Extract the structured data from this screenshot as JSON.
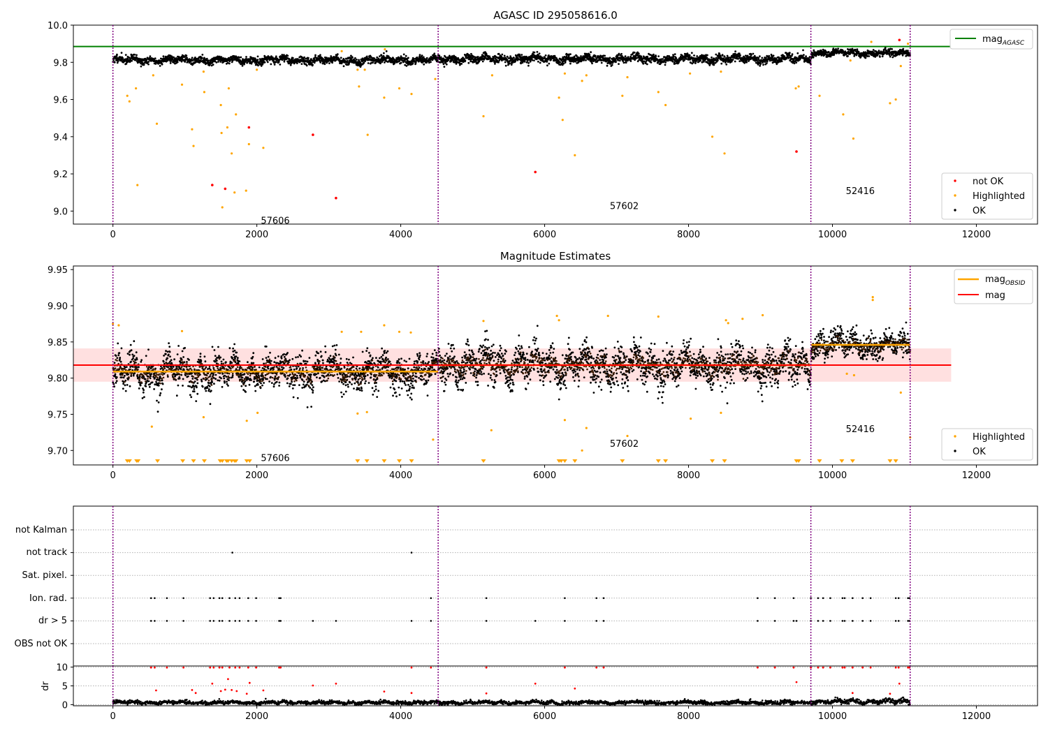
{
  "chart_data": [
    {
      "type": "scatter",
      "title": "AGASC ID 295058616.0",
      "xlim": [
        -550,
        12850
      ],
      "ylim": [
        8.93,
        10.0
      ],
      "xticks": [
        0,
        2000,
        4000,
        6000,
        8000,
        10000,
        12000
      ],
      "yticks": [
        "9.0",
        "9.2",
        "9.4",
        "9.6",
        "9.8",
        "10.0"
      ],
      "grid": false,
      "obsid_boundaries": [
        0,
        4520,
        9700,
        11080
      ],
      "obsid_labels": [
        {
          "text": "57606",
          "x": 2250,
          "y": 8.95
        },
        {
          "text": "57602",
          "x": 7100,
          "y": 9.03
        },
        {
          "text": "52416",
          "x": 10380,
          "y": 9.11
        }
      ],
      "segments": [
        {
          "x_start": 0,
          "x_end": 4520,
          "mean": 9.812,
          "amplitude": 0.022
        },
        {
          "x_start": 4520,
          "x_end": 9700,
          "mean": 9.818,
          "amplitude": 0.024
        },
        {
          "x_start": 9700,
          "x_end": 11080,
          "mean": 9.85,
          "amplitude": 0.018
        }
      ],
      "lines": [
        {
          "name": "mag$_{AGASC}$",
          "label_main": "mag",
          "label_sub": "AGASC",
          "y": 9.885,
          "x_start": -550,
          "x_end": 11650,
          "color": "#008000"
        }
      ],
      "not_ok": [
        [
          1380,
          9.14
        ],
        [
          1560,
          9.12
        ],
        [
          1890,
          9.45
        ],
        [
          2780,
          9.41
        ],
        [
          3100,
          9.07
        ],
        [
          5870,
          9.21
        ],
        [
          9500,
          9.32
        ],
        [
          10930,
          9.92
        ]
      ],
      "highlighted": [
        [
          200,
          9.62
        ],
        [
          230,
          9.59
        ],
        [
          320,
          9.66
        ],
        [
          340,
          9.14
        ],
        [
          560,
          9.73
        ],
        [
          610,
          9.47
        ],
        [
          960,
          9.68
        ],
        [
          1100,
          9.44
        ],
        [
          1120,
          9.35
        ],
        [
          1260,
          9.75
        ],
        [
          1270,
          9.64
        ],
        [
          1500,
          9.57
        ],
        [
          1510,
          9.42
        ],
        [
          1520,
          9.02
        ],
        [
          1590,
          9.45
        ],
        [
          1610,
          9.66
        ],
        [
          1650,
          9.31
        ],
        [
          1690,
          9.1
        ],
        [
          1710,
          9.52
        ],
        [
          1850,
          9.11
        ],
        [
          1890,
          9.36
        ],
        [
          2000,
          9.76
        ],
        [
          2090,
          9.34
        ],
        [
          3180,
          9.86
        ],
        [
          3400,
          9.76
        ],
        [
          3420,
          9.67
        ],
        [
          3500,
          9.76
        ],
        [
          3540,
          9.41
        ],
        [
          3770,
          9.61
        ],
        [
          3780,
          9.87
        ],
        [
          3980,
          9.66
        ],
        [
          4150,
          9.63
        ],
        [
          4480,
          9.71
        ],
        [
          5150,
          9.51
        ],
        [
          5270,
          9.73
        ],
        [
          6200,
          9.61
        ],
        [
          6250,
          9.49
        ],
        [
          6280,
          9.74
        ],
        [
          6420,
          9.3
        ],
        [
          6520,
          9.7
        ],
        [
          6580,
          9.73
        ],
        [
          7080,
          9.62
        ],
        [
          7150,
          9.72
        ],
        [
          7580,
          9.64
        ],
        [
          7680,
          9.57
        ],
        [
          8020,
          9.74
        ],
        [
          8330,
          9.4
        ],
        [
          8450,
          9.75
        ],
        [
          8500,
          9.31
        ],
        [
          9490,
          9.66
        ],
        [
          9530,
          9.67
        ],
        [
          9820,
          9.62
        ],
        [
          10150,
          9.52
        ],
        [
          10250,
          9.81
        ],
        [
          10290,
          9.39
        ],
        [
          10540,
          9.91
        ],
        [
          10800,
          9.58
        ],
        [
          10880,
          9.6
        ],
        [
          10950,
          9.78
        ],
        [
          11050,
          9.9
        ]
      ],
      "legend": {
        "position": "lower-right",
        "entries": [
          "not OK",
          "Highlighted",
          "OK"
        ]
      },
      "legend_top": {
        "position": "upper-right"
      }
    },
    {
      "type": "scatter",
      "title": "Magnitude Estimates",
      "xlim": [
        -550,
        12850
      ],
      "ylim": [
        9.68,
        9.955
      ],
      "xticks": [
        0,
        2000,
        4000,
        6000,
        8000,
        10000,
        12000
      ],
      "yticks": [
        "9.70",
        "9.75",
        "9.80",
        "9.85",
        "9.90",
        "9.95"
      ],
      "grid": false,
      "obsid_boundaries": [
        0,
        4520,
        9700,
        11080
      ],
      "obsid_labels": [
        {
          "text": "57606",
          "x": 2250,
          "y": 9.69
        },
        {
          "text": "57602",
          "x": 7100,
          "y": 9.71
        },
        {
          "text": "52416",
          "x": 10380,
          "y": 9.73
        }
      ],
      "segments": [
        {
          "x_start": 0,
          "x_end": 4520,
          "mean": 9.809,
          "amplitude": 0.026
        },
        {
          "x_start": 4520,
          "x_end": 9700,
          "mean": 9.818,
          "amplitude": 0.028
        },
        {
          "x_start": 9700,
          "x_end": 11080,
          "mean": 9.846,
          "amplitude": 0.02
        }
      ],
      "mag_band": {
        "low": 9.795,
        "high": 9.841,
        "x_start": -550,
        "x_end": 11650,
        "color": "#ff0000"
      },
      "lines": [
        {
          "name": "mag",
          "label_main": "mag",
          "label_sub": "",
          "y": 9.818,
          "x_start": -550,
          "x_end": 11650,
          "color": "#ff0000"
        }
      ],
      "obsid_mags": {
        "label_main": "mag",
        "label_sub": "OBSID",
        "color": "#ffa500",
        "segments": [
          {
            "x_start": 0,
            "x_end": 4520,
            "y": 9.809
          },
          {
            "x_start": 4520,
            "x_end": 9700,
            "y": 9.818
          },
          {
            "x_start": 9700,
            "x_end": 11080,
            "y": 9.846
          }
        ]
      },
      "highlighted": [
        [
          0,
          9.875
        ],
        [
          80,
          9.873
        ],
        [
          540,
          9.733
        ],
        [
          960,
          9.865
        ],
        [
          1260,
          9.746
        ],
        [
          1860,
          9.741
        ],
        [
          2010,
          9.752
        ],
        [
          3180,
          9.864
        ],
        [
          3400,
          9.751
        ],
        [
          3450,
          9.864
        ],
        [
          3530,
          9.753
        ],
        [
          3770,
          9.873
        ],
        [
          3980,
          9.864
        ],
        [
          4140,
          9.863
        ],
        [
          4450,
          9.715
        ],
        [
          5150,
          9.879
        ],
        [
          5260,
          9.728
        ],
        [
          6170,
          9.886
        ],
        [
          6200,
          9.88
        ],
        [
          6280,
          9.742
        ],
        [
          6520,
          9.7
        ],
        [
          6580,
          9.731
        ],
        [
          6880,
          9.886
        ],
        [
          7150,
          9.72
        ],
        [
          7580,
          9.885
        ],
        [
          8030,
          9.744
        ],
        [
          8450,
          9.752
        ],
        [
          8520,
          9.88
        ],
        [
          8550,
          9.876
        ],
        [
          8750,
          9.882
        ],
        [
          9030,
          9.887
        ],
        [
          10200,
          9.806
        ],
        [
          10300,
          9.804
        ],
        [
          10560,
          9.908
        ],
        [
          10560,
          9.912
        ],
        [
          10950,
          9.78
        ],
        [
          11080,
          9.896
        ],
        [
          11080,
          9.718
        ]
      ],
      "clipped_markers_x": [
        200,
        230,
        330,
        350,
        620,
        970,
        1120,
        1270,
        1490,
        1520,
        1580,
        1600,
        1650,
        1690,
        1710,
        1860,
        1900,
        3400,
        3530,
        3770,
        3980,
        4150,
        5150,
        6200,
        6230,
        6280,
        6420,
        7080,
        7580,
        7680,
        8330,
        8500,
        9500,
        9530,
        9820,
        10130,
        10280,
        10800,
        10880
      ],
      "legend": {
        "position": "lower-right",
        "entries": [
          "Highlighted",
          "OK"
        ]
      },
      "legend_top": {
        "position": "upper-right"
      }
    },
    {
      "type": "scatter",
      "title": "",
      "xlim": [
        -550,
        12850
      ],
      "yticks": [
        "not Kalman",
        "not track",
        "Sat. pixel.",
        "Ion. rad.",
        "dr > 5",
        "OBS not OK"
      ],
      "grid": true,
      "obsid_boundaries": [
        0,
        4520,
        9700,
        11080
      ],
      "flags": {
        "not track": [
          1660,
          4150
        ],
        "Ion. rad.": [
          530,
          580,
          750,
          980,
          1350,
          1400,
          1480,
          1520,
          1620,
          1700,
          1760,
          1880,
          1990,
          2310,
          2330,
          4420,
          5190,
          6280,
          6720,
          6820,
          8960,
          9200,
          9460,
          9700,
          9800,
          9870,
          9970,
          10140,
          10170,
          10280,
          10420,
          10530,
          10880,
          10920,
          11050,
          11070
        ],
        "dr > 5": [
          530,
          580,
          750,
          980,
          1350,
          1400,
          1480,
          1520,
          1620,
          1700,
          1760,
          1880,
          1990,
          2310,
          2330,
          2780,
          3100,
          4150,
          4420,
          5190,
          5870,
          6280,
          6720,
          6820,
          8960,
          9200,
          9460,
          9500,
          9700,
          9800,
          9870,
          9970,
          10140,
          10170,
          10280,
          10420,
          10530,
          10880,
          10920,
          11050,
          11070
        ]
      }
    },
    {
      "type": "scatter",
      "title": "",
      "ylabel": "dr",
      "xlim": [
        -550,
        12850
      ],
      "ylim": [
        -0.3,
        10.3
      ],
      "xticks": [
        0,
        2000,
        4000,
        6000,
        8000,
        10000,
        12000
      ],
      "yticks": [
        "0",
        "5",
        "10"
      ],
      "grid": true,
      "obsid_boundaries": [
        0,
        4520,
        9700,
        11080
      ],
      "dr_high": [
        [
          530,
          9.9
        ],
        [
          580,
          9.9
        ],
        [
          750,
          9.9
        ],
        [
          980,
          9.9
        ],
        [
          1350,
          9.9
        ],
        [
          1400,
          9.9
        ],
        [
          1480,
          9.9
        ],
        [
          1520,
          9.9
        ],
        [
          1620,
          9.9
        ],
        [
          1700,
          9.9
        ],
        [
          1760,
          9.9
        ],
        [
          1880,
          9.9
        ],
        [
          1990,
          9.9
        ],
        [
          2310,
          9.9
        ],
        [
          2330,
          9.9
        ],
        [
          4150,
          9.9
        ],
        [
          4420,
          9.9
        ],
        [
          5190,
          9.9
        ],
        [
          6280,
          9.9
        ],
        [
          6720,
          9.9
        ],
        [
          6820,
          9.9
        ],
        [
          8960,
          9.9
        ],
        [
          9200,
          9.9
        ],
        [
          9460,
          9.9
        ],
        [
          9700,
          9.9
        ],
        [
          9800,
          9.9
        ],
        [
          9870,
          9.9
        ],
        [
          9970,
          9.9
        ],
        [
          10140,
          9.9
        ],
        [
          10170,
          9.9
        ],
        [
          10280,
          9.9
        ],
        [
          10420,
          9.9
        ],
        [
          10530,
          9.9
        ],
        [
          10880,
          9.9
        ],
        [
          10920,
          9.9
        ],
        [
          11050,
          9.9
        ],
        [
          11070,
          9.9
        ],
        [
          600,
          3.8
        ],
        [
          1100,
          3.9
        ],
        [
          1150,
          3.1
        ],
        [
          1380,
          5.6
        ],
        [
          1500,
          3.6
        ],
        [
          1560,
          4.0
        ],
        [
          1600,
          6.8
        ],
        [
          1650,
          3.9
        ],
        [
          1720,
          3.6
        ],
        [
          1860,
          2.9
        ],
        [
          1900,
          5.8
        ],
        [
          2090,
          3.8
        ],
        [
          2780,
          5.1
        ],
        [
          3100,
          5.6
        ],
        [
          3770,
          3.5
        ],
        [
          4150,
          3.1
        ],
        [
          5190,
          3.0
        ],
        [
          5870,
          5.6
        ],
        [
          6420,
          4.3
        ],
        [
          9500,
          6.0
        ],
        [
          10280,
          3.1
        ],
        [
          10800,
          2.9
        ],
        [
          10930,
          5.6
        ]
      ],
      "segments": [
        {
          "x_start": 0,
          "x_end": 4520,
          "mean": 0.55,
          "amplitude": 0.55
        },
        {
          "x_start": 4520,
          "x_end": 9700,
          "mean": 0.55,
          "amplitude": 0.55
        },
        {
          "x_start": 9700,
          "x_end": 11080,
          "mean": 0.85,
          "amplitude": 0.75
        }
      ]
    }
  ]
}
